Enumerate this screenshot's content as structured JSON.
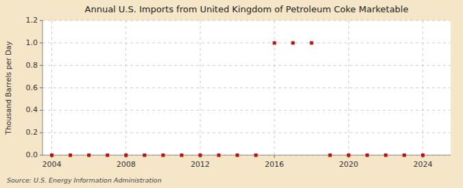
{
  "chart_data": {
    "type": "scatter",
    "title": "Annual U.S. Imports from United Kingdom of Petroleum Coke Marketable",
    "ylabel": "Thousand Barrels per Day",
    "source": "Source: U.S. Energy Information Administration",
    "color": "#bb1111",
    "marker": "square",
    "grid": true,
    "xlim": [
      2003.5,
      2025.5
    ],
    "xticks": [
      2004,
      2008,
      2012,
      2016,
      2020,
      2024
    ],
    "ylim": [
      0,
      1.2
    ],
    "yticks": [
      {
        "value": 0.0,
        "label": "0.0"
      },
      0.2,
      0.4,
      0.6,
      0.8,
      {
        "value": 1.0,
        "label": "1.0"
      },
      1.2
    ],
    "x": [
      2004,
      2005,
      2006,
      2007,
      2008,
      2009,
      2010,
      2011,
      2012,
      2013,
      2014,
      2015,
      2016,
      2017,
      2018,
      2019,
      2020,
      2021,
      2022,
      2023,
      2024
    ],
    "values": [
      0,
      0,
      0,
      0,
      0,
      0,
      0,
      0,
      0,
      0,
      0,
      0,
      1,
      1,
      1,
      0,
      0,
      0,
      0,
      0,
      0
    ]
  }
}
